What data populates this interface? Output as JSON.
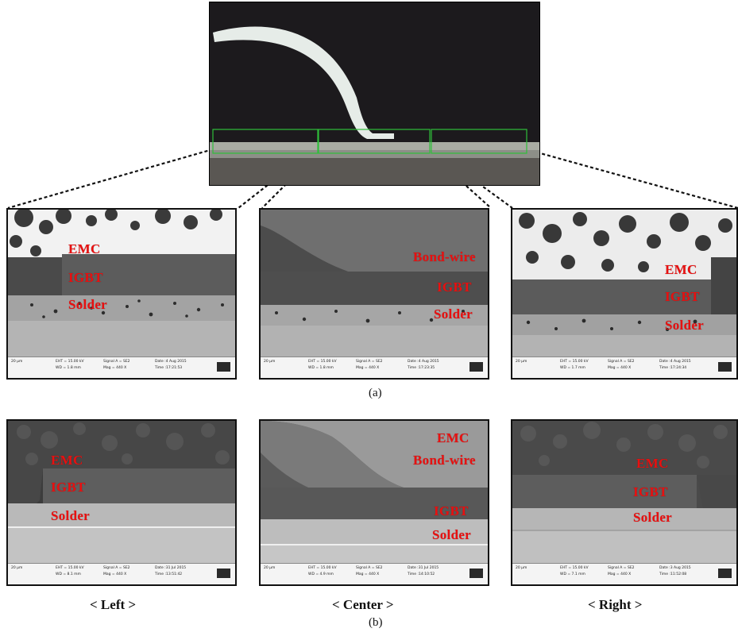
{
  "figure": {
    "caption_a": "(a)",
    "caption_b": "(b)",
    "positions": {
      "left": "< Left >",
      "center": "< Center >",
      "right": "< Right >"
    }
  },
  "row_a": {
    "left": {
      "labels": {
        "emc": "EMC",
        "igbt": "IGBT",
        "solder": "Solder"
      },
      "info": {
        "scale": "20 µm",
        "eht": "EHT = 15.00 kV",
        "wd": "WD = 1.8 mm",
        "signal": "Signal A = SE2",
        "mag": "Mag = 440 X",
        "date": "Date :4 Aug 2015",
        "time": "Time :17:21:53"
      }
    },
    "center": {
      "labels": {
        "bondwire": "Bond-wire",
        "igbt": "IGBT",
        "solder": "Solder"
      },
      "info": {
        "scale": "20 µm",
        "eht": "EHT = 15.00 kV",
        "wd": "WD = 1.8 mm",
        "signal": "Signal A = SE2",
        "mag": "Mag = 440 X",
        "date": "Date :4 Aug 2015",
        "time": "Time :17:23:35"
      }
    },
    "right": {
      "labels": {
        "emc": "EMC",
        "igbt": "IGBT",
        "solder": "Solder"
      },
      "info": {
        "scale": "20 µm",
        "eht": "EHT = 15.00 kV",
        "wd": "WD = 1.7 mm",
        "signal": "Signal A = SE2",
        "mag": "Mag = 440 X",
        "date": "Date :4 Aug 2015",
        "time": "Time :17:24:34"
      }
    }
  },
  "row_b": {
    "left": {
      "labels": {
        "emc": "EMC",
        "igbt": "IGBT",
        "solder": "Solder"
      },
      "info": {
        "scale": "20 µm",
        "eht": "EHT = 15.00 kV",
        "wd": "WD = 8.1 mm",
        "signal": "Signal A = SE2",
        "mag": "Mag = 440 X",
        "date": "Date :31 Jul 2015",
        "time": "Time :13:51:42"
      }
    },
    "center": {
      "labels": {
        "emc": "EMC",
        "bondwire": "Bond-wire",
        "igbt": "IGBT",
        "solder": "Solder"
      },
      "info": {
        "scale": "20 µm",
        "eht": "EHT = 15.00 kV",
        "wd": "WD = 4.9 mm",
        "signal": "Signal A = SE2",
        "mag": "Mag = 440 X",
        "date": "Date :31 Jul 2015",
        "time": "Time :14:10:52"
      }
    },
    "right": {
      "labels": {
        "emc": "EMC",
        "igbt": "IGBT",
        "solder": "Solder"
      },
      "info": {
        "scale": "20 µm",
        "eht": "EHT = 15.00 kV",
        "wd": "WD = 7.1 mm",
        "signal": "Signal A = SE2",
        "mag": "Mag = 440 X",
        "date": "Date :3 Aug 2015",
        "time": "Time :11:52:08"
      }
    }
  },
  "colors": {
    "label_red": "#e81010",
    "selection_green": "#2fbf3a"
  }
}
